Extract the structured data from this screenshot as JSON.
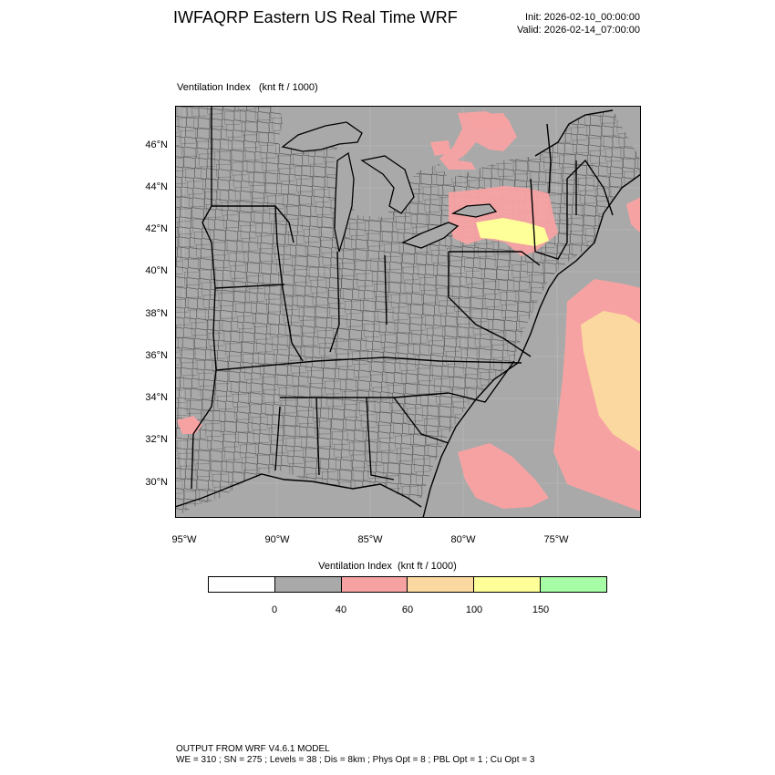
{
  "header": {
    "title": "IWFAQRP Eastern US Real Time WRF",
    "init": "Init: 2026-02-10_00:00:00",
    "valid": "Valid: 2026-02-14_07:00:00"
  },
  "map": {
    "label": "Ventilation Index   (knt ft / 1000)",
    "lat_labels": [
      "46°N",
      "44°N",
      "42°N",
      "40°N",
      "38°N",
      "36°N",
      "34°N",
      "32°N",
      "30°N"
    ],
    "lon_labels": [
      "95°W",
      "90°W",
      "85°W",
      "80°W",
      "75°W"
    ],
    "colors": {
      "land": "#a9a9a9",
      "water": "#a9a9a9",
      "boundary": "#000000",
      "county": "#222222",
      "low": "#f7a2a2",
      "mid": "#fbd8a0",
      "high": "#ffff99"
    }
  },
  "colorbar": {
    "title": "Ventilation Index  (knt ft / 1000)",
    "colors": [
      "#ffffff",
      "#a9a9a9",
      "#f7a2a2",
      "#fbd8a0",
      "#ffff99",
      "#a6fda6"
    ],
    "ticks": [
      "0",
      "40",
      "60",
      "100",
      "150"
    ]
  },
  "footer": {
    "line1": "OUTPUT FROM WRF V4.6.1 MODEL",
    "line2": "WE = 310 ; SN = 275 ; Levels = 38 ; Dis = 8km ; Phys Opt = 8 ; PBL Opt = 1 ; Cu Opt = 3"
  }
}
